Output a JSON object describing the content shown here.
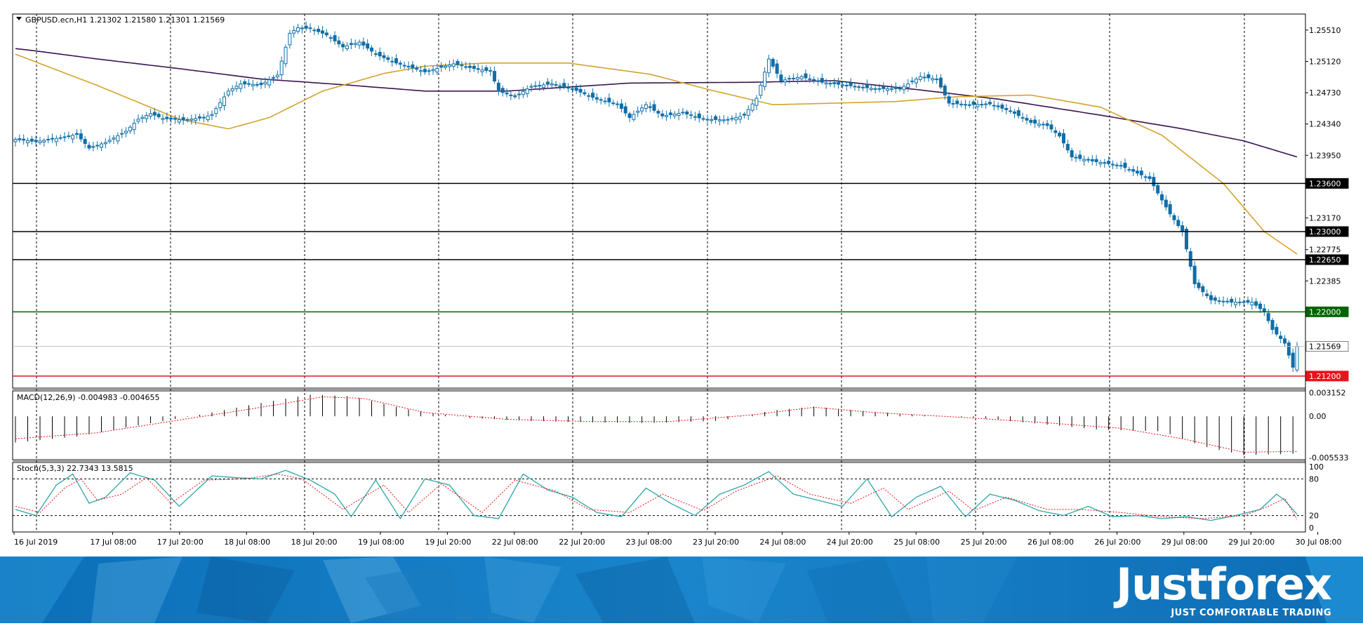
{
  "chart_data": {
    "type": "candlestick",
    "symbol_header": "GBPUSD.ecn,H1  1.21302 1.21580 1.21301 1.21569",
    "ylim": [
      1.2105,
      1.2571
    ],
    "price_ticks": [
      "1.25510",
      "1.25120",
      "1.24730",
      "1.24340",
      "1.23950",
      "1.23170",
      "1.22775",
      "1.22385"
    ],
    "time_labels": [
      "16 Jul 2019",
      "17 Jul 08:00",
      "17 Jul 20:00",
      "18 Jul 08:00",
      "18 Jul 20:00",
      "19 Jul 08:00",
      "19 Jul 20:00",
      "22 Jul 08:00",
      "22 Jul 20:00",
      "23 Jul 08:00",
      "23 Jul 20:00",
      "24 Jul 08:00",
      "24 Jul 20:00",
      "25 Jul 08:00",
      "25 Jul 20:00",
      "26 Jul 08:00",
      "26 Jul 20:00",
      "29 Jul 08:00",
      "29 Jul 20:00",
      "30 Jul 08:00"
    ],
    "horizontal_levels": [
      {
        "label": "1.23600",
        "value": 1.236,
        "color": "#000000"
      },
      {
        "label": "1.23000",
        "value": 1.23,
        "color": "#000000"
      },
      {
        "label": "1.22650",
        "value": 1.2265,
        "color": "#000000"
      },
      {
        "label": "1.22000",
        "value": 1.22,
        "color": "#006400"
      },
      {
        "label": "1.21569",
        "value": 1.21569,
        "color": "#c0c0c0"
      },
      {
        "label": "1.21200",
        "value": 1.212,
        "color": "#e8131b"
      }
    ],
    "close_anchors": [
      [
        0,
        1.2415
      ],
      [
        5,
        1.2412
      ],
      [
        10,
        1.2416
      ],
      [
        15,
        1.2421
      ],
      [
        18,
        1.2404
      ],
      [
        22,
        1.2411
      ],
      [
        27,
        1.2425
      ],
      [
        30,
        1.244
      ],
      [
        33,
        1.2447
      ],
      [
        36,
        1.2441
      ],
      [
        41,
        1.2439
      ],
      [
        46,
        1.2442
      ],
      [
        48,
        1.2446
      ],
      [
        52,
        1.2475
      ],
      [
        55,
        1.2484
      ],
      [
        60,
        1.2483
      ],
      [
        64,
        1.2495
      ],
      [
        67,
        1.2547
      ],
      [
        69,
        1.2554
      ],
      [
        72,
        1.2553
      ],
      [
        76,
        1.2545
      ],
      [
        80,
        1.253
      ],
      [
        84,
        1.2536
      ],
      [
        88,
        1.2521
      ],
      [
        93,
        1.251
      ],
      [
        100,
        1.2499
      ],
      [
        107,
        1.2509
      ],
      [
        113,
        1.2502
      ],
      [
        116,
        1.25
      ],
      [
        118,
        1.2475
      ],
      [
        122,
        1.2468
      ],
      [
        126,
        1.2481
      ],
      [
        131,
        1.2484
      ],
      [
        136,
        1.2478
      ],
      [
        142,
        1.2465
      ],
      [
        147,
        1.2459
      ],
      [
        150,
        1.2442
      ],
      [
        154,
        1.2458
      ],
      [
        158,
        1.2444
      ],
      [
        163,
        1.2448
      ],
      [
        168,
        1.244
      ],
      [
        174,
        1.2439
      ],
      [
        178,
        1.2445
      ],
      [
        181,
        1.2466
      ],
      [
        184,
        1.2515
      ],
      [
        187,
        1.2488
      ],
      [
        192,
        1.2493
      ],
      [
        197,
        1.2486
      ],
      [
        205,
        1.2481
      ],
      [
        210,
        1.2478
      ],
      [
        216,
        1.2478
      ],
      [
        221,
        1.2493
      ],
      [
        225,
        1.249
      ],
      [
        228,
        1.246
      ],
      [
        233,
        1.2458
      ],
      [
        238,
        1.2459
      ],
      [
        243,
        1.245
      ],
      [
        248,
        1.2436
      ],
      [
        252,
        1.2432
      ],
      [
        255,
        1.2419
      ],
      [
        258,
        1.2393
      ],
      [
        264,
        1.2387
      ],
      [
        270,
        1.2382
      ],
      [
        277,
        1.2366
      ],
      [
        279,
        1.2348
      ],
      [
        282,
        1.2322
      ],
      [
        285,
        1.23
      ],
      [
        288,
        1.2235
      ],
      [
        292,
        1.2215
      ],
      [
        297,
        1.2212
      ],
      [
        302,
        1.2212
      ],
      [
        305,
        1.22
      ],
      [
        307,
        1.2178
      ],
      [
        310,
        1.2161
      ],
      [
        312,
        1.2131
      ],
      [
        313,
        1.21569
      ]
    ],
    "moving_averages": [
      {
        "color": "#3c1450",
        "points": [
          [
            0,
            1.2528
          ],
          [
            5,
            1.2525
          ],
          [
            20,
            1.2515
          ],
          [
            40,
            1.2503
          ],
          [
            60,
            1.249
          ],
          [
            80,
            1.2483
          ],
          [
            100,
            1.2475
          ],
          [
            120,
            1.2475
          ],
          [
            150,
            1.2485
          ],
          [
            180,
            1.2486
          ],
          [
            200,
            1.2488
          ],
          [
            220,
            1.2477
          ],
          [
            240,
            1.2465
          ],
          [
            265,
            1.2445
          ],
          [
            285,
            1.2428
          ],
          [
            300,
            1.2413
          ],
          [
            313,
            1.2393
          ]
        ]
      },
      {
        "color": "#d4a32c",
        "points": [
          [
            0,
            1.2521
          ],
          [
            20,
            1.2482
          ],
          [
            40,
            1.244
          ],
          [
            52,
            1.2428
          ],
          [
            62,
            1.2442
          ],
          [
            75,
            1.2475
          ],
          [
            90,
            1.2497
          ],
          [
            100,
            1.2506
          ],
          [
            115,
            1.251
          ],
          [
            135,
            1.251
          ],
          [
            155,
            1.2496
          ],
          [
            170,
            1.2476
          ],
          [
            185,
            1.2458
          ],
          [
            200,
            1.246
          ],
          [
            215,
            1.2462
          ],
          [
            230,
            1.2468
          ],
          [
            248,
            1.247
          ],
          [
            265,
            1.2455
          ],
          [
            280,
            1.242
          ],
          [
            295,
            1.236
          ],
          [
            305,
            1.23
          ],
          [
            313,
            1.2272
          ]
        ]
      }
    ],
    "macd": {
      "label": "MACD(12,26,9) -0.004983 -0.004655",
      "ticks": [
        "0.003152",
        "0.00",
        "-0.005533"
      ],
      "ylim": [
        -0.0058,
        0.0034
      ],
      "histogram_anchors": [
        [
          0,
          -0.0035
        ],
        [
          15,
          -0.0027
        ],
        [
          30,
          -0.0012
        ],
        [
          45,
          0.0002
        ],
        [
          60,
          0.0018
        ],
        [
          72,
          0.0029
        ],
        [
          82,
          0.0027
        ],
        [
          95,
          0.001
        ],
        [
          110,
          -0.0002
        ],
        [
          125,
          -0.0006
        ],
        [
          140,
          -0.0008
        ],
        [
          155,
          -0.0009
        ],
        [
          172,
          -0.0006
        ],
        [
          185,
          0.0008
        ],
        [
          195,
          0.0013
        ],
        [
          205,
          0.0008
        ],
        [
          220,
          0.0002
        ],
        [
          235,
          -0.0002
        ],
        [
          250,
          -0.001
        ],
        [
          265,
          -0.0018
        ],
        [
          280,
          -0.002
        ],
        [
          290,
          -0.004
        ],
        [
          300,
          -0.0052
        ],
        [
          313,
          -0.005
        ]
      ],
      "signal_anchors": [
        [
          0,
          -0.003
        ],
        [
          20,
          -0.0022
        ],
        [
          40,
          -0.0005
        ],
        [
          60,
          0.0012
        ],
        [
          75,
          0.0026
        ],
        [
          85,
          0.0024
        ],
        [
          100,
          0.0005
        ],
        [
          120,
          -0.0004
        ],
        [
          140,
          -0.0007
        ],
        [
          160,
          -0.0007
        ],
        [
          180,
          0.0002
        ],
        [
          195,
          0.0012
        ],
        [
          210,
          0.0005
        ],
        [
          230,
          -0.0001
        ],
        [
          250,
          -0.0008
        ],
        [
          270,
          -0.0016
        ],
        [
          285,
          -0.003
        ],
        [
          300,
          -0.0048
        ],
        [
          313,
          -0.0047
        ]
      ]
    },
    "stochastic": {
      "label": "Stoch(5,3,3) 22.7343 13.5815",
      "ticks": [
        "100",
        "80",
        "20",
        "0"
      ],
      "ylim": [
        0,
        100
      ],
      "levels": [
        80,
        20
      ],
      "main_anchors": [
        [
          0,
          30
        ],
        [
          5,
          20
        ],
        [
          10,
          70
        ],
        [
          14,
          88
        ],
        [
          18,
          40
        ],
        [
          22,
          50
        ],
        [
          28,
          90
        ],
        [
          34,
          78
        ],
        [
          40,
          35
        ],
        [
          48,
          85
        ],
        [
          54,
          82
        ],
        [
          60,
          80
        ],
        [
          66,
          94
        ],
        [
          72,
          78
        ],
        [
          78,
          55
        ],
        [
          82,
          18
        ],
        [
          88,
          78
        ],
        [
          94,
          15
        ],
        [
          100,
          80
        ],
        [
          106,
          70
        ],
        [
          112,
          20
        ],
        [
          118,
          15
        ],
        [
          124,
          88
        ],
        [
          130,
          62
        ],
        [
          136,
          50
        ],
        [
          142,
          25
        ],
        [
          148,
          18
        ],
        [
          154,
          65
        ],
        [
          160,
          40
        ],
        [
          166,
          20
        ],
        [
          172,
          55
        ],
        [
          178,
          70
        ],
        [
          184,
          92
        ],
        [
          190,
          55
        ],
        [
          196,
          45
        ],
        [
          202,
          35
        ],
        [
          208,
          80
        ],
        [
          214,
          18
        ],
        [
          220,
          50
        ],
        [
          226,
          68
        ],
        [
          232,
          18
        ],
        [
          238,
          55
        ],
        [
          244,
          45
        ],
        [
          250,
          28
        ],
        [
          256,
          20
        ],
        [
          262,
          35
        ],
        [
          268,
          18
        ],
        [
          274,
          20
        ],
        [
          280,
          15
        ],
        [
          286,
          18
        ],
        [
          292,
          12
        ],
        [
          298,
          20
        ],
        [
          304,
          30
        ],
        [
          308,
          55
        ],
        [
          310,
          45
        ],
        [
          313,
          22
        ]
      ],
      "signal_anchors": [
        [
          0,
          35
        ],
        [
          6,
          25
        ],
        [
          12,
          65
        ],
        [
          16,
          80
        ],
        [
          20,
          45
        ],
        [
          26,
          55
        ],
        [
          32,
          82
        ],
        [
          38,
          40
        ],
        [
          46,
          78
        ],
        [
          56,
          80
        ],
        [
          64,
          88
        ],
        [
          70,
          80
        ],
        [
          80,
          30
        ],
        [
          90,
          70
        ],
        [
          96,
          25
        ],
        [
          104,
          72
        ],
        [
          114,
          25
        ],
        [
          122,
          78
        ],
        [
          132,
          60
        ],
        [
          140,
          30
        ],
        [
          150,
          25
        ],
        [
          158,
          55
        ],
        [
          168,
          28
        ],
        [
          176,
          60
        ],
        [
          186,
          85
        ],
        [
          194,
          55
        ],
        [
          204,
          40
        ],
        [
          212,
          65
        ],
        [
          218,
          30
        ],
        [
          228,
          60
        ],
        [
          234,
          28
        ],
        [
          242,
          50
        ],
        [
          252,
          30
        ],
        [
          260,
          30
        ],
        [
          270,
          25
        ],
        [
          280,
          18
        ],
        [
          290,
          15
        ],
        [
          300,
          20
        ],
        [
          306,
          35
        ],
        [
          310,
          48
        ],
        [
          313,
          14
        ]
      ]
    }
  },
  "footer": {
    "brand": "Justforex",
    "tagline": "JUST COMFORTABLE TRADING"
  }
}
